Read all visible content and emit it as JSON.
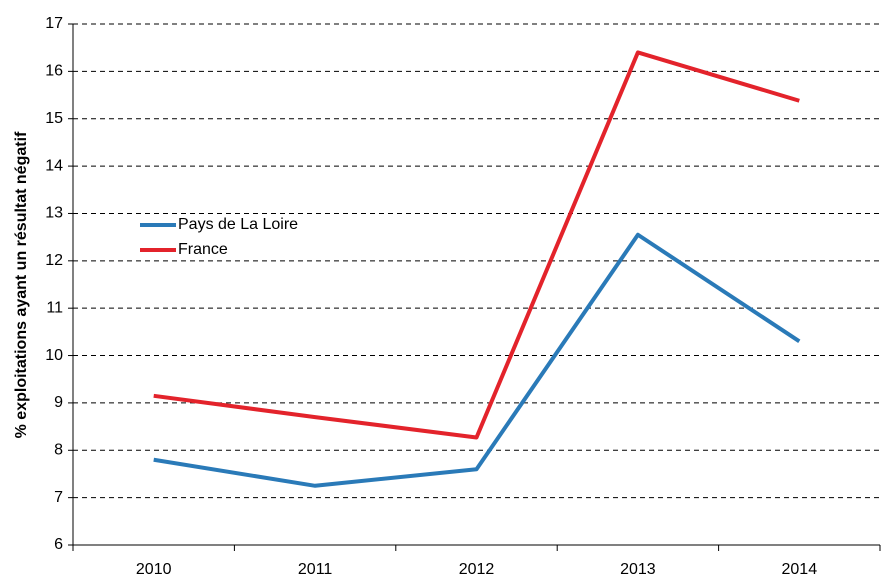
{
  "chart_data": {
    "type": "line",
    "y_axis_label": "% exploitations ayant un résultat négatif",
    "categories": [
      "2010",
      "2011",
      "2012",
      "2013",
      "2014"
    ],
    "series": [
      {
        "name": "Pays de La Loire",
        "color": "#2a7ab8",
        "values": [
          7.8,
          7.25,
          7.6,
          12.55,
          10.3
        ]
      },
      {
        "name": "France",
        "color": "#e3232b",
        "values": [
          9.15,
          8.7,
          8.27,
          16.4,
          15.38
        ]
      }
    ],
    "ylim": [
      6,
      17
    ],
    "yticks": [
      6,
      7,
      8,
      9,
      10,
      11,
      12,
      13,
      14,
      15,
      16,
      17
    ],
    "grid": true,
    "legend": "left"
  }
}
